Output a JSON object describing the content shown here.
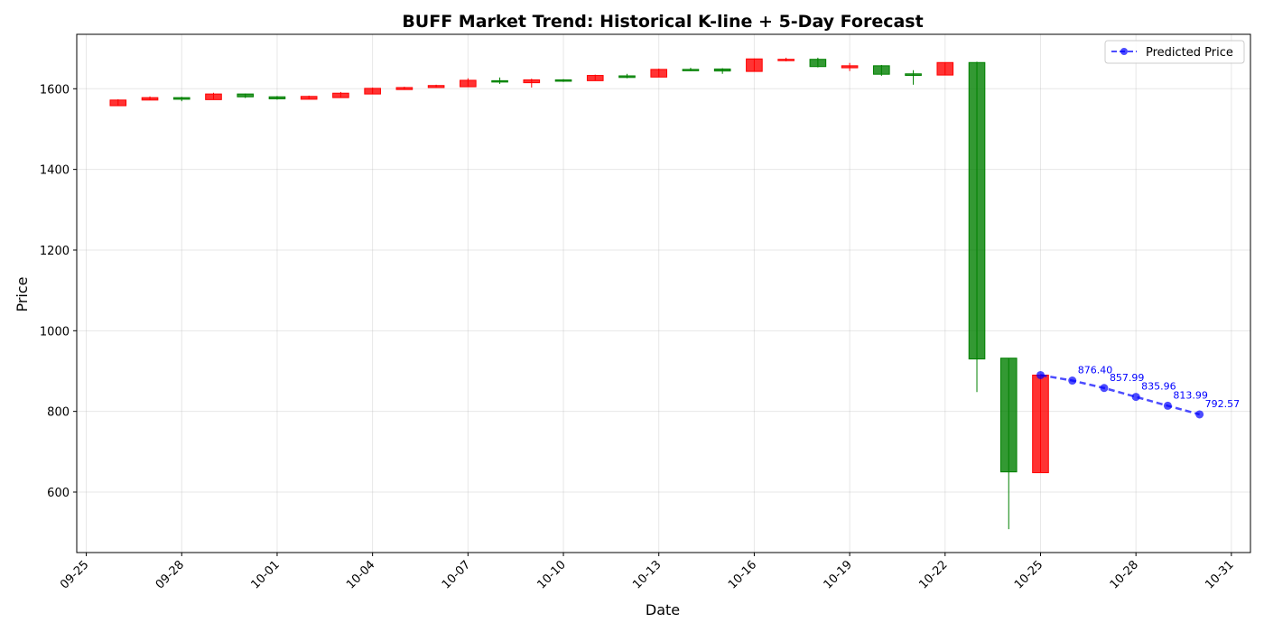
{
  "chart_data": {
    "type": "candlestick",
    "title": "BUFF Market Trend: Historical K-line + 5-Day Forecast",
    "xlabel": "Date",
    "ylabel": "Price",
    "ylim": [
      450,
      1735
    ],
    "y_ticks": [
      600,
      800,
      1000,
      1200,
      1400,
      1600
    ],
    "x_ticks": [
      "09-25",
      "09-28",
      "10-01",
      "10-04",
      "10-07",
      "10-10",
      "10-13",
      "10-16",
      "10-19",
      "10-22",
      "10-25",
      "10-28",
      "10-31"
    ],
    "x_range": [
      "09-25",
      "10-31"
    ],
    "grid": true,
    "legend_position": "top-right",
    "colors": {
      "up": "#008000",
      "down": "#ff0000",
      "forecast": "#0000ff"
    },
    "candles": [
      {
        "date": "09-26",
        "open": 1572,
        "high": 1574,
        "low": 1558,
        "close": 1558
      },
      {
        "date": "09-27",
        "open": 1578,
        "high": 1581,
        "low": 1572,
        "close": 1572
      },
      {
        "date": "09-28",
        "open": 1574,
        "high": 1580,
        "low": 1569,
        "close": 1578
      },
      {
        "date": "09-29",
        "open": 1587,
        "high": 1590,
        "low": 1573,
        "close": 1573
      },
      {
        "date": "09-30",
        "open": 1580,
        "high": 1588,
        "low": 1577,
        "close": 1587
      },
      {
        "date": "10-01",
        "open": 1575,
        "high": 1582,
        "low": 1573,
        "close": 1580
      },
      {
        "date": "10-02",
        "open": 1581,
        "high": 1583,
        "low": 1574,
        "close": 1574
      },
      {
        "date": "10-03",
        "open": 1589,
        "high": 1592,
        "low": 1578,
        "close": 1578
      },
      {
        "date": "10-04",
        "open": 1601,
        "high": 1603,
        "low": 1587,
        "close": 1587
      },
      {
        "date": "10-05",
        "open": 1603,
        "high": 1605,
        "low": 1598,
        "close": 1598
      },
      {
        "date": "10-06",
        "open": 1608,
        "high": 1610,
        "low": 1603,
        "close": 1603
      },
      {
        "date": "10-07",
        "open": 1621,
        "high": 1626,
        "low": 1605,
        "close": 1605
      },
      {
        "date": "10-08",
        "open": 1617,
        "high": 1628,
        "low": 1612,
        "close": 1620
      },
      {
        "date": "10-09",
        "open": 1622,
        "high": 1625,
        "low": 1603,
        "close": 1615
      },
      {
        "date": "10-10",
        "open": 1620,
        "high": 1624,
        "low": 1617,
        "close": 1622
      },
      {
        "date": "10-11",
        "open": 1633,
        "high": 1635,
        "low": 1620,
        "close": 1620
      },
      {
        "date": "10-12",
        "open": 1628,
        "high": 1637,
        "low": 1626,
        "close": 1632
      },
      {
        "date": "10-13",
        "open": 1648,
        "high": 1650,
        "low": 1629,
        "close": 1629
      },
      {
        "date": "10-14",
        "open": 1646,
        "high": 1652,
        "low": 1644,
        "close": 1648
      },
      {
        "date": "10-15",
        "open": 1644,
        "high": 1651,
        "low": 1637,
        "close": 1649
      },
      {
        "date": "10-16",
        "open": 1674,
        "high": 1675,
        "low": 1643,
        "close": 1643
      },
      {
        "date": "10-17",
        "open": 1673,
        "high": 1677,
        "low": 1668,
        "close": 1670
      },
      {
        "date": "10-18",
        "open": 1655,
        "high": 1677,
        "low": 1653,
        "close": 1673
      },
      {
        "date": "10-19",
        "open": 1657,
        "high": 1664,
        "low": 1644,
        "close": 1652
      },
      {
        "date": "10-20",
        "open": 1636,
        "high": 1659,
        "low": 1632,
        "close": 1657
      },
      {
        "date": "10-21",
        "open": 1633,
        "high": 1646,
        "low": 1610,
        "close": 1637
      },
      {
        "date": "10-22",
        "open": 1665,
        "high": 1665,
        "low": 1634,
        "close": 1634
      },
      {
        "date": "10-23",
        "open": 930,
        "high": 1667,
        "low": 848,
        "close": 1665
      },
      {
        "date": "10-24",
        "open": 650,
        "high": 932,
        "low": 508,
        "close": 932
      },
      {
        "date": "10-25",
        "open": 890,
        "high": 892,
        "low": 648,
        "close": 648
      }
    ],
    "series": [
      {
        "name": "Predicted Price",
        "x": [
          "10-25",
          "10-26",
          "10-27",
          "10-28",
          "10-29",
          "10-30"
        ],
        "values": [
          890,
          876.4,
          857.99,
          835.96,
          813.99,
          792.57
        ],
        "labels": [
          "",
          "876.40",
          "857.99",
          "835.96",
          "813.99",
          "792.57"
        ]
      }
    ]
  }
}
